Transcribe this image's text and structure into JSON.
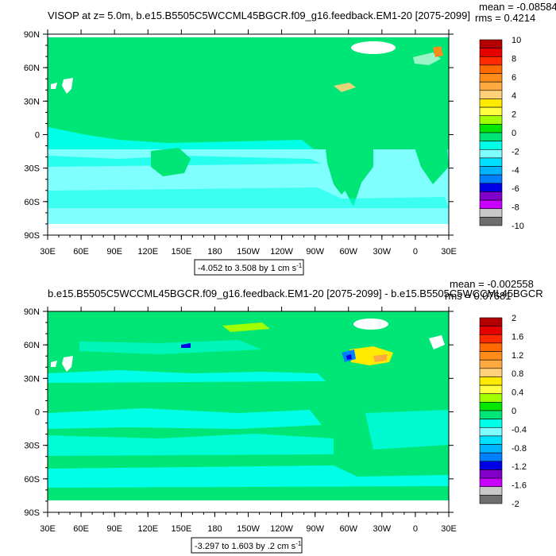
{
  "colors": {
    "ocean_cyan": "#00ffe6",
    "ocean_light": "#80ffff",
    "land_green": "#00e676",
    "mask_white": "#ffffff"
  },
  "chart_data": [
    {
      "type": "heatmap",
      "title_left": "VISOP at z=   5.0m, b.e15.B5505C5WCCML45BGCR.f09_g16.feedback.EM1-20 [2075-2099]",
      "stat_mean": "mean = -0.08584",
      "stat_rms": "rms = 0.4214",
      "x_ticks": [
        "30E",
        "60E",
        "90E",
        "120E",
        "150E",
        "180",
        "150W",
        "120W",
        "90W",
        "60W",
        "30W",
        "0",
        "30E"
      ],
      "y_ticks": [
        "90N",
        "60N",
        "30N",
        "0",
        "30S",
        "60S",
        "90S"
      ],
      "range_label": "-4.052 to 3.508 by 1 cm s",
      "range_unit_sup": "-1",
      "colorbar": {
        "labels": [
          "10",
          "8",
          "6",
          "4",
          "2",
          "0",
          "-2",
          "-4",
          "-6",
          "-8",
          "-10"
        ],
        "colors": [
          "#b40000",
          "#e60000",
          "#ff2a00",
          "#ff6a00",
          "#ff8c1a",
          "#ffaa40",
          "#ffd27a",
          "#ffea00",
          "#ffff40",
          "#a0ff00",
          "#00e600",
          "#00e676",
          "#00ffe6",
          "#80ffff",
          "#00e0ff",
          "#00b4ff",
          "#0080ff",
          "#0000e6",
          "#8000c8",
          "#c800ff",
          "#c8c8c8",
          "#6e6e6e"
        ]
      }
    },
    {
      "type": "heatmap",
      "title_left": "b.e15.B5505C5WCCML45BGCR.f09_g16.feedback.EM1-20 [2075-2099] - b.e15.B5505C5WCCML45BGCR",
      "stat_mean": "mean = -0.002558",
      "stat_rms": "rms = 0.07681",
      "x_ticks": [
        "30E",
        "60E",
        "90E",
        "120E",
        "150E",
        "180",
        "150W",
        "120W",
        "90W",
        "60W",
        "30W",
        "0",
        "30E"
      ],
      "y_ticks": [
        "90N",
        "60N",
        "30N",
        "0",
        "30S",
        "60S",
        "90S"
      ],
      "range_label": "-3.297 to 1.603 by .2 cm s",
      "range_unit_sup": "-1",
      "colorbar": {
        "labels": [
          "2",
          "1.6",
          "1.2",
          "0.8",
          "0.4",
          "0",
          "-0.4",
          "-0.8",
          "-1.2",
          "-1.6",
          "-2"
        ],
        "colors": [
          "#b40000",
          "#e60000",
          "#ff2a00",
          "#ff6a00",
          "#ff8c1a",
          "#ffaa40",
          "#ffd27a",
          "#ffea00",
          "#ffff40",
          "#a0ff00",
          "#00e600",
          "#00e676",
          "#00ffe6",
          "#80ffff",
          "#00e0ff",
          "#00b4ff",
          "#0080ff",
          "#0000e6",
          "#8000c8",
          "#c800ff",
          "#c8c8c8",
          "#6e6e6e"
        ]
      }
    }
  ]
}
